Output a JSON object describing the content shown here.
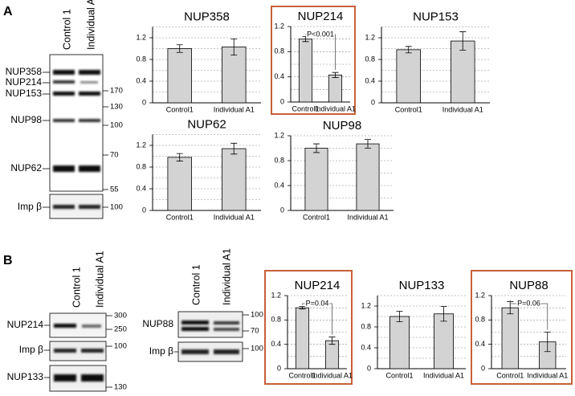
{
  "chart_data": [
    {
      "type": "bar",
      "title": "NUP358",
      "categories": [
        "Control1",
        "Individual A1"
      ],
      "values": [
        1.0,
        1.03
      ],
      "errors": [
        0.07,
        0.15
      ],
      "color": "#d3d3d3",
      "ylim": [
        0,
        1.4
      ],
      "yticks": [
        0,
        0.4,
        0.8,
        1.2
      ],
      "minor_grid": [
        0.2,
        0.6,
        1.0,
        1.4
      ],
      "grid": true
    },
    {
      "type": "bar",
      "title": "NUP214",
      "categories": [
        "Control1",
        "Individual A1"
      ],
      "values": [
        1.0,
        0.43
      ],
      "errors": [
        0.04,
        0.04
      ],
      "color": "#d3d3d3",
      "ylim": [
        0,
        1.2
      ],
      "yticks": [
        0,
        0.4,
        0.8,
        1.2
      ],
      "minor_grid": [
        0.2,
        0.6,
        1.0
      ],
      "grid": true,
      "annotation": "P<0.001",
      "frame_color": "#c8603a"
    },
    {
      "type": "bar",
      "title": "NUP153",
      "categories": [
        "Control1",
        "Individual A1"
      ],
      "values": [
        0.98,
        1.14
      ],
      "errors": [
        0.06,
        0.17
      ],
      "color": "#d3d3d3",
      "ylim": [
        0,
        1.4
      ],
      "yticks": [
        0,
        0.4,
        0.8,
        1.2
      ],
      "minor_grid": [
        0.2,
        0.6,
        1.0,
        1.4
      ],
      "grid": true
    },
    {
      "type": "bar",
      "title": "NUP62",
      "categories": [
        "Control1",
        "Individual A1"
      ],
      "values": [
        0.98,
        1.14
      ],
      "errors": [
        0.07,
        0.1
      ],
      "color": "#d3d3d3",
      "ylim": [
        0,
        1.4
      ],
      "yticks": [
        0,
        0.4,
        0.8,
        1.2
      ],
      "minor_grid": [
        0.2,
        0.6,
        1.0,
        1.4
      ],
      "grid": true
    },
    {
      "type": "bar",
      "title": "NUP98",
      "categories": [
        "Control1",
        "Individual A1"
      ],
      "values": [
        1.0,
        1.07
      ],
      "errors": [
        0.07,
        0.07
      ],
      "color": "#d3d3d3",
      "ylim": [
        0,
        1.2
      ],
      "yticks": [
        0,
        0.4,
        0.8,
        1.2
      ],
      "minor_grid": [
        0.2,
        0.6,
        1.0
      ],
      "grid": true
    },
    {
      "type": "bar",
      "title": "NUP214",
      "categories": [
        "Control1",
        "Individual A1"
      ],
      "values": [
        1.0,
        0.46
      ],
      "errors": [
        0.02,
        0.06
      ],
      "color": "#d3d3d3",
      "ylim": [
        0,
        1.2
      ],
      "yticks": [
        0,
        0.4,
        0.8,
        1.2
      ],
      "minor_grid": [
        0.2,
        0.6,
        1.0
      ],
      "grid": true,
      "annotation": "P=0.04",
      "frame_color": "#c8603a"
    },
    {
      "type": "bar",
      "title": "NUP133",
      "categories": [
        "Control1",
        "Individual A1"
      ],
      "values": [
        1.0,
        1.05
      ],
      "errors": [
        0.1,
        0.14
      ],
      "color": "#d3d3d3",
      "ylim": [
        0,
        1.4
      ],
      "yticks": [
        0,
        0.4,
        0.8,
        1.2
      ],
      "minor_grid": [
        0.2,
        0.6,
        1.0,
        1.4
      ],
      "grid": true
    },
    {
      "type": "bar",
      "title": "NUP88",
      "categories": [
        "Control1",
        "Individual A1"
      ],
      "values": [
        1.0,
        0.44
      ],
      "errors": [
        0.1,
        0.16
      ],
      "color": "#d3d3d3",
      "ylim": [
        0,
        1.2
      ],
      "yticks": [
        0,
        0.4,
        0.8,
        1.2
      ],
      "minor_grid": [
        0.2,
        0.6,
        1.0
      ],
      "grid": true,
      "annotation": "P=0.06",
      "frame_color": "#c8603a"
    }
  ],
  "blots": [
    {
      "panel": "A",
      "lanes": [
        "Control 1",
        "Individual A1"
      ],
      "proteins": [
        "NUP358",
        "NUP214",
        "NUP153",
        "NUP98",
        "NUP62",
        "Imp β"
      ],
      "markers": [
        "170",
        "130",
        "100",
        "70",
        "55",
        "100"
      ]
    },
    {
      "panel": "B",
      "lanes": [
        "Control 1",
        "Individual A1"
      ],
      "proteins": [
        "NUP214",
        "Imp β",
        "NUP133"
      ],
      "markers": [
        "300",
        "250",
        "100",
        "130"
      ]
    },
    {
      "lanes": [
        "Control 1",
        "Individual A1"
      ],
      "proteins": [
        "NUP88",
        "Imp β"
      ],
      "markers": [
        "100",
        "70",
        "100"
      ]
    }
  ]
}
